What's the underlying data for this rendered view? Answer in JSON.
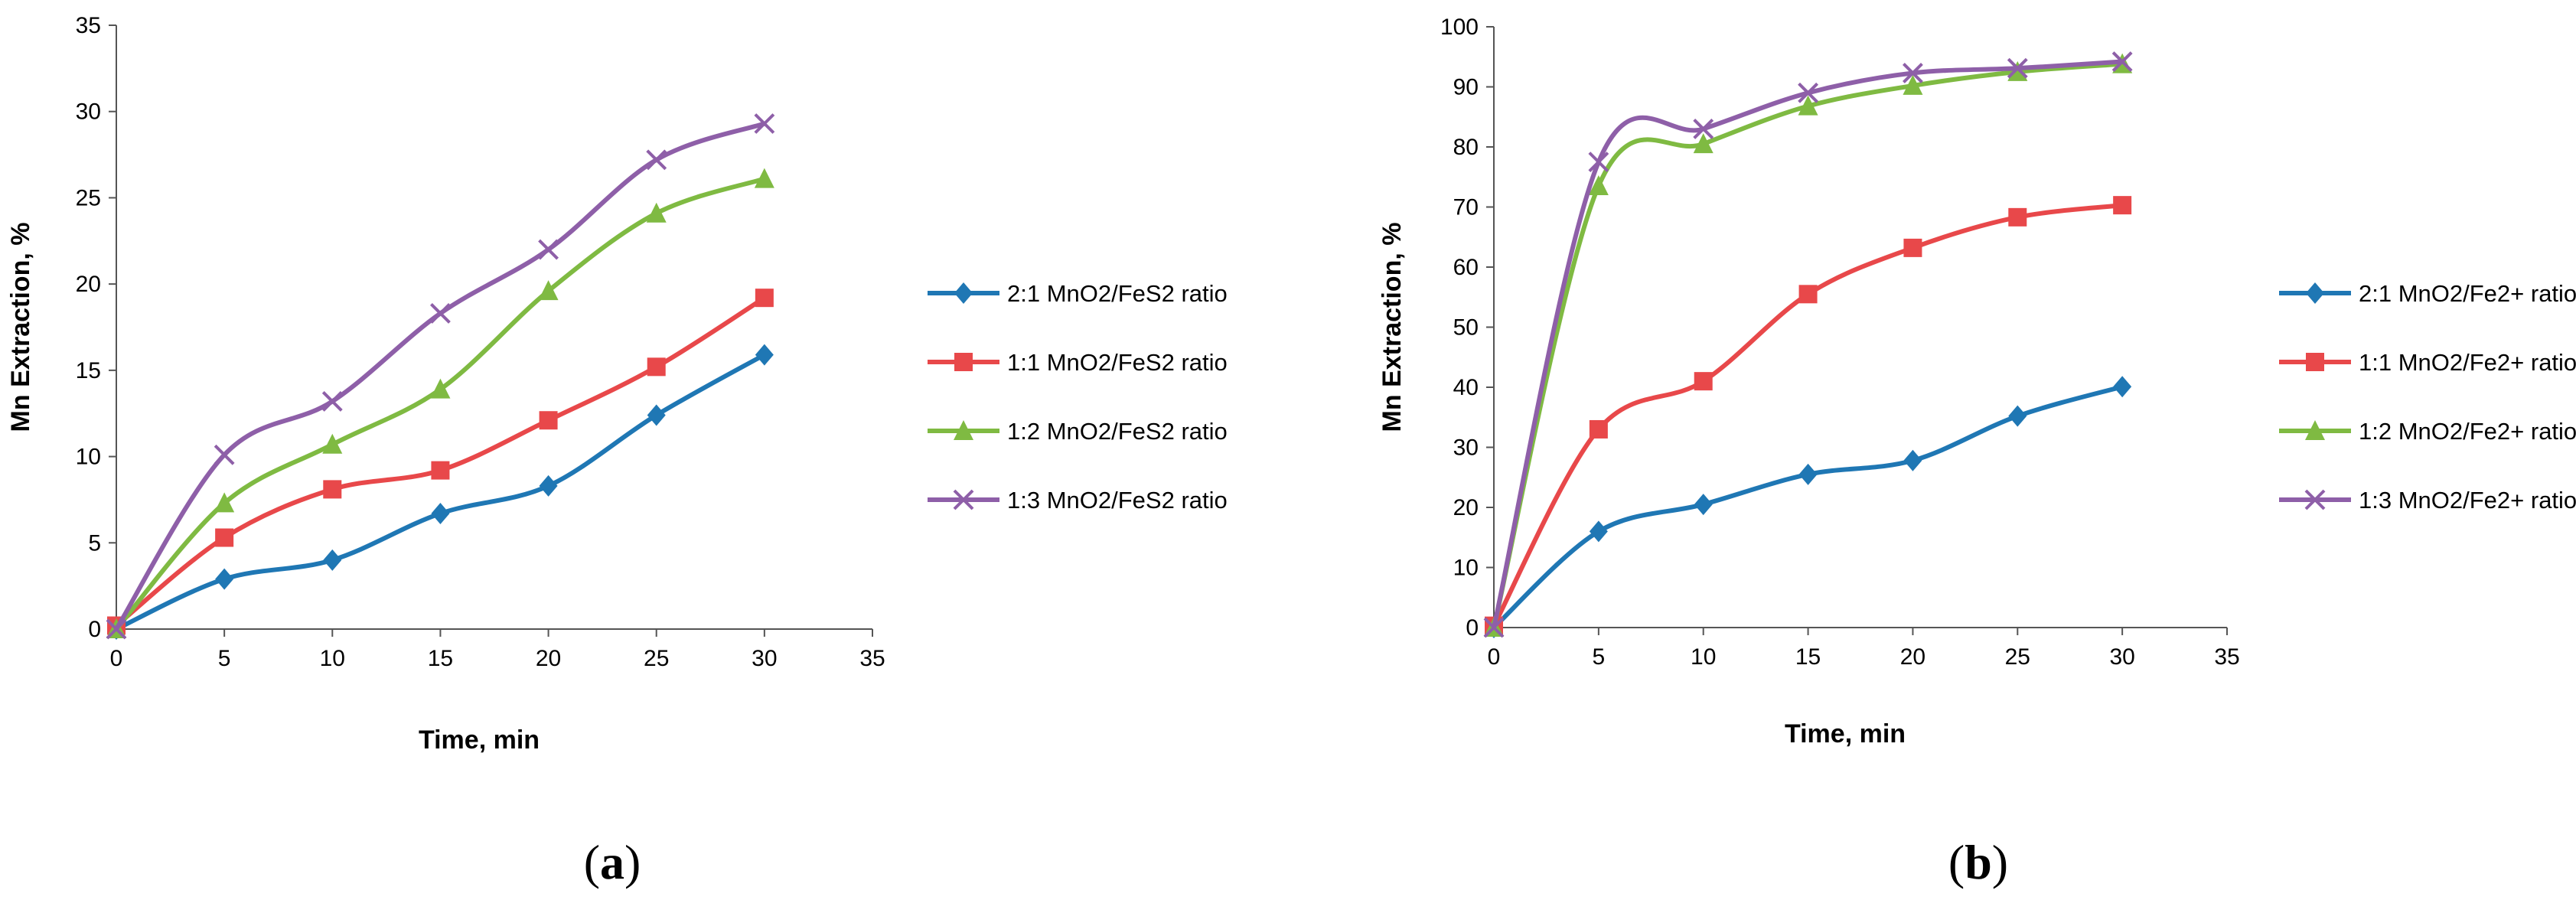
{
  "chart_data": [
    {
      "type": "line",
      "panel_label": "a",
      "xlabel": "Time, min",
      "ylabel": "Mn Extraction, %",
      "xlim": [
        0,
        35
      ],
      "ylim": [
        0,
        35
      ],
      "xticks": [
        0,
        5,
        10,
        15,
        20,
        25,
        30,
        35
      ],
      "yticks": [
        0,
        5,
        10,
        15,
        20,
        25,
        30,
        35
      ],
      "grid": false,
      "legend_position": "right",
      "x": [
        0,
        5,
        10,
        15,
        20,
        25,
        30
      ],
      "series": [
        {
          "name": "2:1 MnO2/FeS2 ratio",
          "values": [
            0,
            2.9,
            4.0,
            6.7,
            8.3,
            12.4,
            15.9
          ],
          "color": "#1f77b4",
          "marker": "diamond"
        },
        {
          "name": "1:1 MnO2/FeS2 ratio",
          "values": [
            0.2,
            5.3,
            8.1,
            9.2,
            12.1,
            15.2,
            19.2
          ],
          "color": "#e8484a",
          "marker": "square"
        },
        {
          "name": "1:2 MnO2/FeS2 ratio",
          "values": [
            0,
            7.3,
            10.7,
            13.9,
            19.6,
            24.1,
            26.1
          ],
          "color": "#7fba42",
          "marker": "triangle"
        },
        {
          "name": "1:3 MnO2/FeS2 ratio",
          "values": [
            0,
            10.1,
            13.2,
            18.3,
            22.0,
            27.2,
            29.3
          ],
          "color": "#8e5fa8",
          "marker": "x"
        }
      ]
    },
    {
      "type": "line",
      "panel_label": "b",
      "xlabel": "Time, min",
      "ylabel": "Mn Extraction, %",
      "xlim": [
        0,
        35
      ],
      "ylim": [
        0,
        100
      ],
      "xticks": [
        0,
        5,
        10,
        15,
        20,
        25,
        30,
        35
      ],
      "yticks": [
        0,
        10,
        20,
        30,
        40,
        50,
        60,
        70,
        80,
        90,
        100
      ],
      "grid": false,
      "legend_position": "right",
      "x": [
        0,
        5,
        10,
        15,
        20,
        25,
        30
      ],
      "series": [
        {
          "name": "2:1 MnO2/Fe2+ ratio",
          "values": [
            0,
            16,
            20.5,
            25.5,
            27.8,
            35.2,
            40.1
          ],
          "color": "#1f77b4",
          "marker": "diamond"
        },
        {
          "name": "1:1 MnO2/Fe2+ ratio",
          "values": [
            0.3,
            33,
            41,
            55.5,
            63.2,
            68.3,
            70.3
          ],
          "color": "#e8484a",
          "marker": "square"
        },
        {
          "name": "1:2 MnO2/Fe2+ ratio",
          "values": [
            0,
            73.5,
            80.5,
            86.8,
            90.2,
            92.5,
            93.8
          ],
          "color": "#7fba42",
          "marker": "triangle"
        },
        {
          "name": "1:3 MnO2/Fe2+ ratio",
          "values": [
            0,
            77.5,
            83,
            89,
            92.3,
            93.1,
            94.2
          ],
          "color": "#8e5fa8",
          "marker": "x"
        }
      ]
    }
  ]
}
